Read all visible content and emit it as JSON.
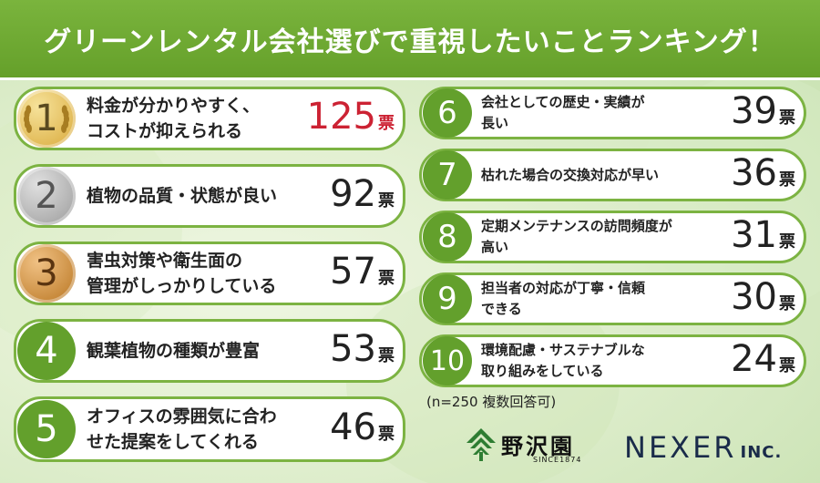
{
  "title": "グリーンレンタル会社選びで重視したいことランキング！",
  "chart_data": {
    "type": "bar",
    "title": "グリーンレンタル会社選びで重視したいことランキング！",
    "note": "(n=250 複数回答可)",
    "unit": "票",
    "items": [
      {
        "rank": "1",
        "label": "料金が分かりやすく、\nコストが抑えられる",
        "value": 125
      },
      {
        "rank": "2",
        "label": "植物の品質・状態が良い",
        "value": 92
      },
      {
        "rank": "3",
        "label": "害虫対策や衛生面の\n管理がしっかりしている",
        "value": 57
      },
      {
        "rank": "4",
        "label": "観葉植物の種類が豊富",
        "value": 53
      },
      {
        "rank": "5",
        "label": "オフィスの雰囲気に合わ\nせた提案をしてくれる",
        "value": 46
      },
      {
        "rank": "6",
        "label": "会社としての歴史・実績が\n長い",
        "value": 39
      },
      {
        "rank": "7",
        "label": "枯れた場合の交換対応が早い",
        "value": 36
      },
      {
        "rank": "8",
        "label": "定期メンテナンスの訪問頻度が\n高い",
        "value": 31
      },
      {
        "rank": "9",
        "label": "担当者の対応が丁寧・信頼\nできる",
        "value": 30
      },
      {
        "rank": "10",
        "label": "環境配慮・サステナブルな\n取り組みをしている",
        "value": 24
      }
    ],
    "colors": {
      "green": "#63a02c",
      "accent_red": "#cc2233",
      "gold": "#e0b84a",
      "silver": "#a8a8a8",
      "bronze": "#c98a3a"
    }
  },
  "brands": {
    "logo1_name": "野沢園",
    "logo1_sub": "SINCE1874",
    "logo2_name": "NEXER",
    "logo2_suffix": "INC."
  }
}
